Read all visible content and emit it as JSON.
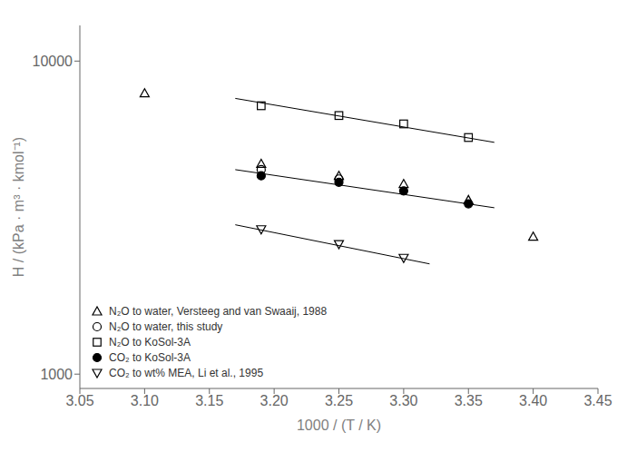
{
  "chart_data": {
    "type": "scatter",
    "xlabel": "1000 / (T / K)",
    "ylabel": "H / (kPa · m³ · kmol⁻¹)",
    "xlim": [
      3.05,
      3.45
    ],
    "ylim": [
      900,
      13000
    ],
    "xticks": [
      3.05,
      {
        "value": 3.1,
        "label": "3.10"
      },
      3.15,
      {
        "value": 3.2,
        "label": "3.20"
      },
      3.25,
      {
        "value": 3.3,
        "label": "3.30"
      },
      3.35,
      {
        "value": 3.4,
        "label": "3.40"
      },
      3.45
    ],
    "yticks": [
      1000,
      10000
    ],
    "log": "y",
    "grid": false,
    "legend": "lower left",
    "series": [
      {
        "name": "N₂O to water, Versteeg and van Swaaij, 1988",
        "color": "#000000",
        "marker": "open-triangle",
        "x": [
          3.1,
          3.19,
          3.25,
          3.3,
          3.35,
          3.4
        ],
        "values": [
          7900,
          4700,
          4300,
          4050,
          3600,
          2750
        ]
      },
      {
        "name": "N₂O to water, this study",
        "color": "#000000",
        "marker": "open-circle",
        "x": [
          3.19,
          3.25
        ],
        "values": [
          4500,
          4200
        ]
      },
      {
        "name": "N₂O to KoSol-3A",
        "color": "#000000",
        "marker": "open-square",
        "x": [
          3.19,
          3.25,
          3.3,
          3.35
        ],
        "values": [
          7200,
          6700,
          6300,
          5700
        ],
        "fit": {
          "x": [
            3.17,
            3.37
          ],
          "values": [
            7600,
            5500
          ]
        }
      },
      {
        "name": "CO₂ to KoSol-3A",
        "color": "#000000",
        "marker": "filled-circle",
        "x": [
          3.19,
          3.25,
          3.3,
          3.35
        ],
        "values": [
          4300,
          4100,
          3850,
          3500
        ],
        "fit": {
          "x": [
            3.17,
            3.37
          ],
          "values": [
            4500,
            3400
          ]
        }
      },
      {
        "name": "CO₂ to wt% MEA, Li et al., 1995",
        "color": "#000000",
        "marker": "open-triangle-down",
        "x": [
          3.19,
          3.25,
          3.3
        ],
        "values": [
          2900,
          2600,
          2350
        ],
        "fit": {
          "x": [
            3.17,
            3.32
          ],
          "values": [
            3000,
            2250
          ]
        }
      }
    ]
  }
}
